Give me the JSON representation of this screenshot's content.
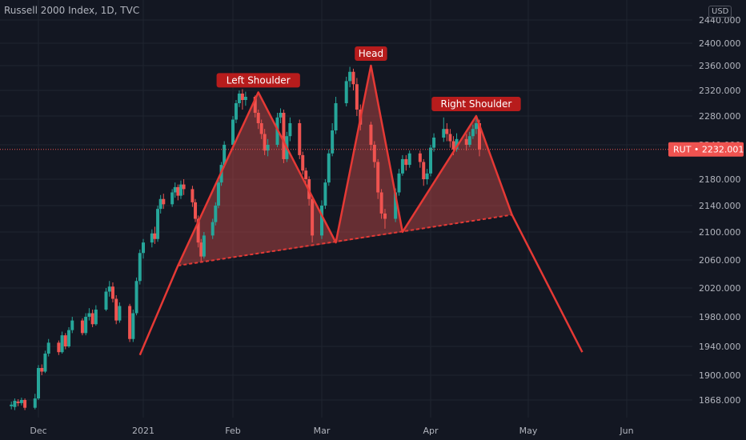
{
  "header": {
    "title": "Russell 2000 Index, 1D, TVC",
    "currency": "USD"
  },
  "colors": {
    "background": "#131722",
    "grid": "#1f2430",
    "up": "#26a69a",
    "down": "#ef5350",
    "pattern": "#e53935",
    "label_bg": "#b71c1c",
    "price_tag": "#ef5350"
  },
  "price_tag": {
    "symbol": "RUT",
    "separator": "•",
    "price": "2232.001"
  },
  "chart_data": {
    "type": "candlestick",
    "title": "Russell 2000 Index, 1D, TVC",
    "y_axis": {
      "range": [
        1840,
        2460
      ],
      "ticks": [
        "2440.000",
        "2400.000",
        "2360.000",
        "2320.000",
        "2280.000",
        "2240.000",
        "2180.000",
        "2140.000",
        "2100.000",
        "2060.000",
        "2020.000",
        "1980.000",
        "1940.000",
        "1900.000",
        "1868.000"
      ]
    },
    "x_axis": {
      "ticks": [
        "Dec",
        "2021",
        "Feb",
        "Mar",
        "Apr",
        "May",
        "Jun"
      ]
    },
    "current_price": 2232.001,
    "pattern": {
      "name": "head-and-shoulders",
      "labels": [
        "Left Shoulder",
        "Head",
        "Right Shoulder"
      ],
      "points": [
        {
          "date": "2020-12-31",
          "value": 1928
        },
        {
          "date": "2021-01-13",
          "value": 2052
        },
        {
          "date": "2021-02-09",
          "value": 2317
        },
        {
          "date": "2021-03-05",
          "value": 2085
        },
        {
          "date": "2021-03-15",
          "value": 2360
        },
        {
          "date": "2021-03-24",
          "value": 2100
        },
        {
          "date": "2021-04-15",
          "value": 2280
        },
        {
          "date": "2021-04-26",
          "value": 2126
        },
        {
          "date": "2021-05-18",
          "value": 1932
        }
      ]
    },
    "candles": [
      [
        1860,
        1862,
        1856,
        1866
      ],
      [
        1859,
        1867,
        1855,
        1870
      ],
      [
        1866,
        1864,
        1860,
        1869
      ],
      [
        1864,
        1868,
        1861,
        1871
      ],
      [
        1868,
        1858,
        1855,
        1870
      ],
      [
        1858,
        1870,
        1856,
        1876
      ],
      [
        1870,
        1910,
        1868,
        1914
      ],
      [
        1910,
        1905,
        1900,
        1915
      ],
      [
        1905,
        1930,
        1903,
        1934
      ],
      [
        1930,
        1945,
        1926,
        1950
      ],
      [
        1945,
        1932,
        1928,
        1948
      ],
      [
        1932,
        1955,
        1930,
        1960
      ],
      [
        1955,
        1940,
        1936,
        1958
      ],
      [
        1940,
        1962,
        1938,
        1966
      ],
      [
        1962,
        1975,
        1958,
        1980
      ],
      [
        1975,
        1958,
        1955,
        1978
      ],
      [
        1958,
        1980,
        1955,
        1985
      ],
      [
        1980,
        1985,
        1975,
        1992
      ],
      [
        1985,
        1970,
        1966,
        1990
      ],
      [
        1970,
        1990,
        1968,
        1996
      ],
      [
        1990,
        2015,
        1988,
        2020
      ],
      [
        2015,
        2022,
        2008,
        2030
      ],
      [
        2022,
        2005,
        2000,
        2028
      ],
      [
        2005,
        1975,
        1970,
        2010
      ],
      [
        1975,
        1995,
        1972,
        2000
      ],
      [
        1995,
        1950,
        1946,
        1998
      ],
      [
        1950,
        1985,
        1946,
        1990
      ],
      [
        1985,
        2030,
        1982,
        2035
      ],
      [
        2030,
        2070,
        2025,
        2075
      ],
      [
        2070,
        2085,
        2062,
        2090
      ],
      [
        2085,
        2098,
        2078,
        2104
      ],
      [
        2098,
        2090,
        2083,
        2108
      ],
      [
        2090,
        2135,
        2086,
        2140
      ],
      [
        2135,
        2150,
        2128,
        2156
      ],
      [
        2150,
        2142,
        2135,
        2158
      ],
      [
        2142,
        2160,
        2138,
        2165
      ],
      [
        2160,
        2168,
        2152,
        2175
      ],
      [
        2168,
        2155,
        2148,
        2172
      ],
      [
        2155,
        2172,
        2150,
        2178
      ],
      [
        2172,
        2165,
        2156,
        2180
      ],
      [
        2165,
        2145,
        2138,
        2170
      ],
      [
        2145,
        2120,
        2115,
        2150
      ],
      [
        2120,
        2085,
        2078,
        2125
      ],
      [
        2085,
        2065,
        2058,
        2090
      ],
      [
        2065,
        2095,
        2062,
        2100
      ],
      [
        2095,
        2115,
        2090,
        2120
      ],
      [
        2115,
        2140,
        2110,
        2145
      ],
      [
        2140,
        2175,
        2136,
        2180
      ],
      [
        2175,
        2205,
        2170,
        2210
      ],
      [
        2205,
        2240,
        2200,
        2245
      ],
      [
        2240,
        2275,
        2235,
        2280
      ],
      [
        2275,
        2300,
        2270,
        2305
      ],
      [
        2300,
        2315,
        2294,
        2320
      ],
      [
        2315,
        2305,
        2290,
        2322
      ],
      [
        2305,
        2310,
        2296,
        2318
      ],
      [
        2310,
        2285,
        2278,
        2312
      ],
      [
        2285,
        2270,
        2262,
        2290
      ],
      [
        2270,
        2255,
        2248,
        2275
      ],
      [
        2255,
        2230,
        2222,
        2262
      ],
      [
        2230,
        2240,
        2220,
        2248
      ],
      [
        2240,
        2278,
        2236,
        2285
      ],
      [
        2278,
        2285,
        2270,
        2292
      ],
      [
        2285,
        2215,
        2208,
        2290
      ],
      [
        2215,
        2252,
        2210,
        2258
      ],
      [
        2252,
        2270,
        2245,
        2278
      ],
      [
        2270,
        2222,
        2215,
        2275
      ],
      [
        2222,
        2195,
        2188,
        2228
      ],
      [
        2195,
        2180,
        2172,
        2200
      ],
      [
        2180,
        2150,
        2140,
        2185
      ],
      [
        2150,
        2095,
        2085,
        2155
      ],
      [
        2095,
        2140,
        2090,
        2148
      ],
      [
        2140,
        2175,
        2135,
        2180
      ],
      [
        2175,
        2225,
        2170,
        2232
      ],
      [
        2225,
        2260,
        2220,
        2270
      ],
      [
        2260,
        2300,
        2255,
        2310
      ],
      [
        2300,
        2335,
        2295,
        2342
      ],
      [
        2335,
        2350,
        2325,
        2358
      ],
      [
        2350,
        2330,
        2320,
        2355
      ],
      [
        2330,
        2290,
        2280,
        2340
      ],
      [
        2290,
        2268,
        2260,
        2298
      ],
      [
        2268,
        2240,
        2230,
        2272
      ],
      [
        2240,
        2210,
        2200,
        2245
      ],
      [
        2210,
        2160,
        2150,
        2215
      ],
      [
        2160,
        2128,
        2120,
        2165
      ],
      [
        2128,
        2120,
        2105,
        2135
      ],
      [
        2120,
        2160,
        2115,
        2166
      ],
      [
        2160,
        2190,
        2155,
        2198
      ],
      [
        2190,
        2215,
        2186,
        2222
      ],
      [
        2215,
        2205,
        2195,
        2222
      ],
      [
        2205,
        2225,
        2200,
        2230
      ],
      [
        2225,
        2210,
        2200,
        2230
      ],
      [
        2210,
        2180,
        2170,
        2215
      ],
      [
        2180,
        2190,
        2172,
        2198
      ],
      [
        2190,
        2235,
        2185,
        2240
      ],
      [
        2235,
        2250,
        2228,
        2256
      ],
      [
        2250,
        2262,
        2244,
        2278
      ],
      [
        2262,
        2255,
        2245,
        2270
      ],
      [
        2255,
        2245,
        2235,
        2262
      ],
      [
        2245,
        2232,
        2222,
        2252
      ],
      [
        2232,
        2248,
        2228,
        2256
      ],
      [
        2248,
        2240,
        2230,
        2255
      ],
      [
        2240,
        2252,
        2236,
        2258
      ],
      [
        2252,
        2262,
        2248,
        2268
      ],
      [
        2262,
        2270,
        2255,
        2278
      ],
      [
        2270,
        2232,
        2220,
        2275
      ]
    ]
  }
}
